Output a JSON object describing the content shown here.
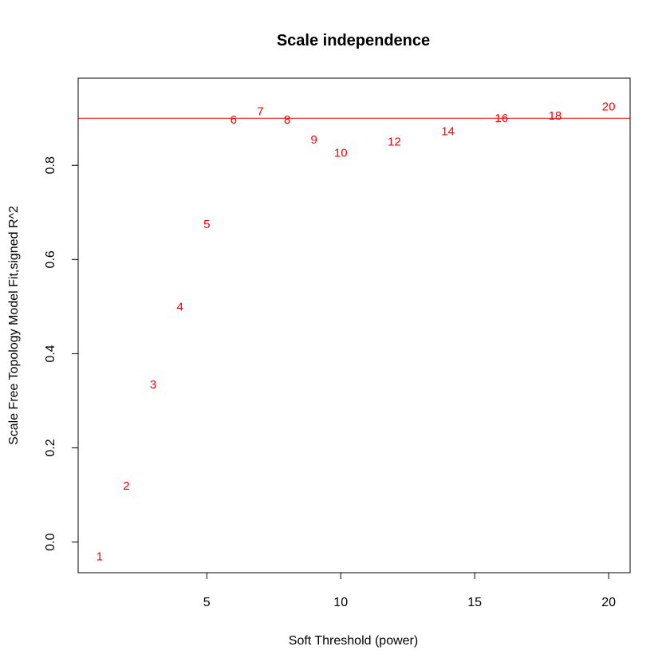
{
  "chart_data": {
    "type": "scatter",
    "title": "Scale independence",
    "xlabel": "Soft Threshold (power)",
    "ylabel": "Scale Free Topology Model Fit,signed R^2",
    "xlim": [
      0.2,
      20.8
    ],
    "ylim": [
      -0.065,
      0.985
    ],
    "xticks": [
      5,
      10,
      15,
      20
    ],
    "yticks": [
      0.0,
      0.2,
      0.4,
      0.6,
      0.8
    ],
    "xtick_labels": [
      "5",
      "10",
      "15",
      "20"
    ],
    "ytick_labels": [
      "0.0",
      "0.2",
      "0.4",
      "0.6",
      "0.8"
    ],
    "hline": 0.9,
    "marker_color": "#ff0000",
    "line_color": "#ff0000",
    "points": [
      {
        "x": 1,
        "y": -0.03,
        "label": "1"
      },
      {
        "x": 2,
        "y": 0.12,
        "label": "2"
      },
      {
        "x": 3,
        "y": 0.335,
        "label": "3"
      },
      {
        "x": 4,
        "y": 0.5,
        "label": "4"
      },
      {
        "x": 5,
        "y": 0.675,
        "label": "5"
      },
      {
        "x": 6,
        "y": 0.897,
        "label": "6"
      },
      {
        "x": 7,
        "y": 0.915,
        "label": "7"
      },
      {
        "x": 8,
        "y": 0.897,
        "label": "8"
      },
      {
        "x": 9,
        "y": 0.855,
        "label": "9"
      },
      {
        "x": 10,
        "y": 0.827,
        "label": "10"
      },
      {
        "x": 12,
        "y": 0.85,
        "label": "12"
      },
      {
        "x": 14,
        "y": 0.872,
        "label": "14"
      },
      {
        "x": 16,
        "y": 0.9,
        "label": "16"
      },
      {
        "x": 18,
        "y": 0.905,
        "label": "18"
      },
      {
        "x": 20,
        "y": 0.925,
        "label": "20"
      }
    ]
  }
}
